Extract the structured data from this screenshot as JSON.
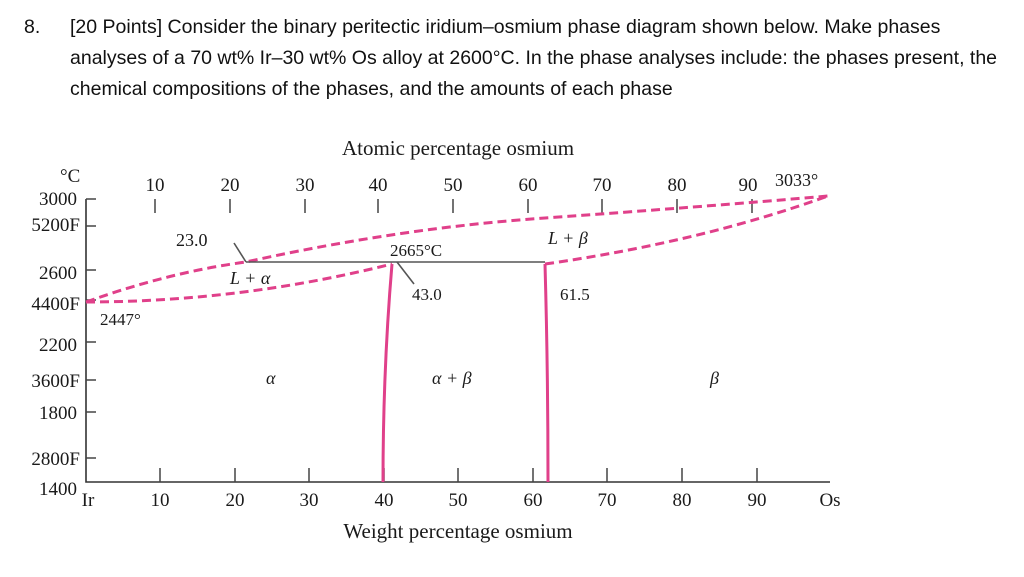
{
  "question": {
    "number": "8.",
    "text": "[20 Points] Consider the binary peritectic iridium–osmium phase diagram shown below. Make phases analyses of a 70 wt% Ir–30 wt% Os alloy at 2600°C. In the phase analyses include: the phases present, the chemical compositions of the phases, and the amounts of each phase"
  },
  "diagram": {
    "top_axis_label": "Atomic percentage osmium",
    "bottom_axis_label": "Weight percentage osmium",
    "top_ticks": [
      "10",
      "20",
      "30",
      "40",
      "50",
      "60",
      "70",
      "80",
      "90"
    ],
    "bottom_ticks": [
      "10",
      "20",
      "30",
      "40",
      "50",
      "60",
      "70",
      "80",
      "90"
    ],
    "left_element": "Ir",
    "right_element": "Os",
    "temp_unit": "°C",
    "y_labels": [
      "3000",
      "5200F",
      "2600",
      "4400F",
      "2200",
      "3600F",
      "1800",
      "2800F",
      "1400"
    ],
    "annotations": {
      "peritectic_temp": "2665°C",
      "ir_melting": "2447°",
      "os_melting": "3033°",
      "alpha_limit": "23.0",
      "peritectic_comp": "43.0",
      "beta_limit": "61.5",
      "region_l_alpha": "L + α",
      "region_l_beta": "L + β",
      "region_alpha": "α",
      "region_alpha_beta": "α + β",
      "region_beta": "β"
    },
    "colors": {
      "phase_boundary": "#e0408a",
      "frame": "#333333"
    }
  }
}
